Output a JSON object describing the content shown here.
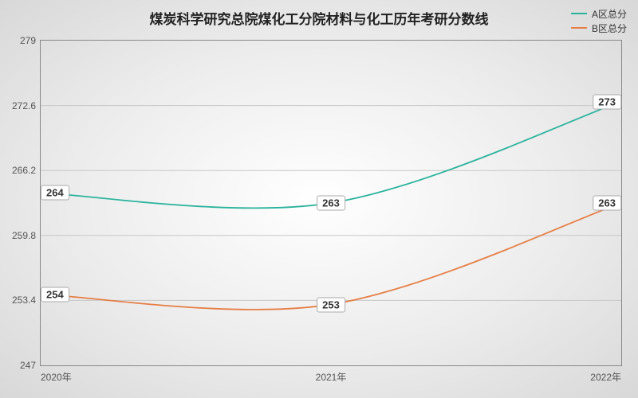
{
  "chart": {
    "type": "line",
    "title": "煤炭科学研究总院煤化工分院材料与化工历年考研分数线",
    "title_fontsize": 17,
    "title_color": "#222222",
    "background_gradient": {
      "center": "#ffffff",
      "mid": "#ececec",
      "edge": "#d8d8d8"
    },
    "border_color": "#888888",
    "grid_color": "#c8c8c8",
    "label_color": "#555555",
    "label_fontsize": 12,
    "point_label_bg": "#ffffff",
    "point_label_border": "#aaaaaa",
    "x": {
      "categories": [
        "2020年",
        "2021年",
        "2022年"
      ],
      "positions": [
        0,
        0.5,
        1
      ]
    },
    "y": {
      "min": 247,
      "max": 279,
      "ticks": [
        247,
        253.4,
        259.8,
        266.2,
        272.6,
        279
      ]
    },
    "series": [
      {
        "name": "A区总分",
        "color": "#2ab39b",
        "values": [
          264,
          263,
          273
        ],
        "labels": [
          "264",
          "263",
          "273"
        ]
      },
      {
        "name": "B区总分",
        "color": "#e67e45",
        "values": [
          254,
          253,
          263
        ],
        "labels": [
          "254",
          "253",
          "263"
        ]
      }
    ],
    "line_width": 1.8,
    "curve": "smooth"
  }
}
